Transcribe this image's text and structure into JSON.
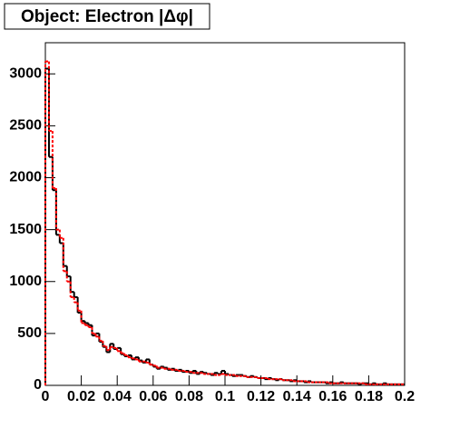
{
  "chart_data": {
    "type": "histogram",
    "title": "Object: Electron |Δφ|",
    "bins": [
      0,
      0.002,
      0.004,
      0.006,
      0.008,
      0.01,
      0.012,
      0.014,
      0.016,
      0.018,
      0.02,
      0.022,
      0.024,
      0.026,
      0.028,
      0.03,
      0.032,
      0.034,
      0.036,
      0.038,
      0.04,
      0.042,
      0.044,
      0.046,
      0.048,
      0.05,
      0.052,
      0.054,
      0.056,
      0.058,
      0.06,
      0.062,
      0.064,
      0.066,
      0.068,
      0.07,
      0.072,
      0.074,
      0.076,
      0.078,
      0.08,
      0.082,
      0.084,
      0.086,
      0.088,
      0.09,
      0.092,
      0.094,
      0.096,
      0.098,
      0.1,
      0.102,
      0.104,
      0.106,
      0.108,
      0.11,
      0.112,
      0.114,
      0.116,
      0.118,
      0.12,
      0.122,
      0.124,
      0.126,
      0.128,
      0.13,
      0.132,
      0.134,
      0.136,
      0.138,
      0.14,
      0.142,
      0.144,
      0.146,
      0.148,
      0.15,
      0.152,
      0.154,
      0.156,
      0.158,
      0.16,
      0.162,
      0.164,
      0.166,
      0.168,
      0.17,
      0.172,
      0.174,
      0.176,
      0.178,
      0.18,
      0.182,
      0.184,
      0.186,
      0.188,
      0.19,
      0.192,
      0.194,
      0.196,
      0.198,
      0.2
    ],
    "series": [
      {
        "color": "#000000",
        "dash": false,
        "values": [
          3050,
          2200,
          1880,
          1450,
          1370,
          1150,
          1050,
          900,
          850,
          700,
          620,
          600,
          580,
          480,
          500,
          420,
          370,
          320,
          400,
          350,
          360,
          300,
          280,
          290,
          250,
          270,
          240,
          220,
          250,
          200,
          180,
          160,
          180,
          170,
          150,
          160,
          140,
          150,
          130,
          140,
          120,
          140,
          110,
          130,
          120,
          110,
          100,
          120,
          110,
          140,
          110,
          100,
          90,
          100,
          100,
          90,
          80,
          90,
          80,
          70,
          70,
          60,
          70,
          60,
          50,
          60,
          50,
          50,
          40,
          50,
          40,
          40,
          30,
          40,
          30,
          30,
          30,
          30,
          20,
          30,
          20,
          20,
          30,
          20,
          20,
          20,
          20,
          10,
          20,
          20,
          10,
          20,
          10,
          10,
          20,
          10,
          10,
          10,
          10,
          10
        ]
      },
      {
        "color": "#ff0000",
        "dash": true,
        "values": [
          3120,
          2450,
          1900,
          1500,
          1420,
          1100,
          1000,
          850,
          800,
          720,
          600,
          580,
          560,
          500,
          470,
          430,
          380,
          340,
          370,
          360,
          330,
          310,
          290,
          270,
          260,
          250,
          230,
          230,
          220,
          200,
          190,
          170,
          170,
          160,
          160,
          150,
          150,
          140,
          140,
          130,
          130,
          120,
          120,
          120,
          110,
          110,
          110,
          100,
          100,
          110,
          100,
          100,
          100,
          90,
          90,
          90,
          80,
          80,
          80,
          70,
          70,
          70,
          60,
          60,
          60,
          60,
          50,
          50,
          50,
          40,
          40,
          40,
          40,
          30,
          30,
          30,
          30,
          30,
          30,
          20,
          20,
          20,
          20,
          20,
          20,
          20,
          20,
          20,
          20,
          10,
          10,
          10,
          10,
          10,
          10,
          10,
          10,
          10,
          10,
          10
        ]
      }
    ],
    "xlim": [
      0,
      0.2
    ],
    "ylim": [
      0,
      3300
    ],
    "xticks": [
      0,
      0.02,
      0.04,
      0.06,
      0.08,
      0.1,
      0.12,
      0.14,
      0.16,
      0.18,
      0.2
    ],
    "yticks": [
      0,
      500,
      1000,
      1500,
      2000,
      2500,
      3000
    ]
  }
}
